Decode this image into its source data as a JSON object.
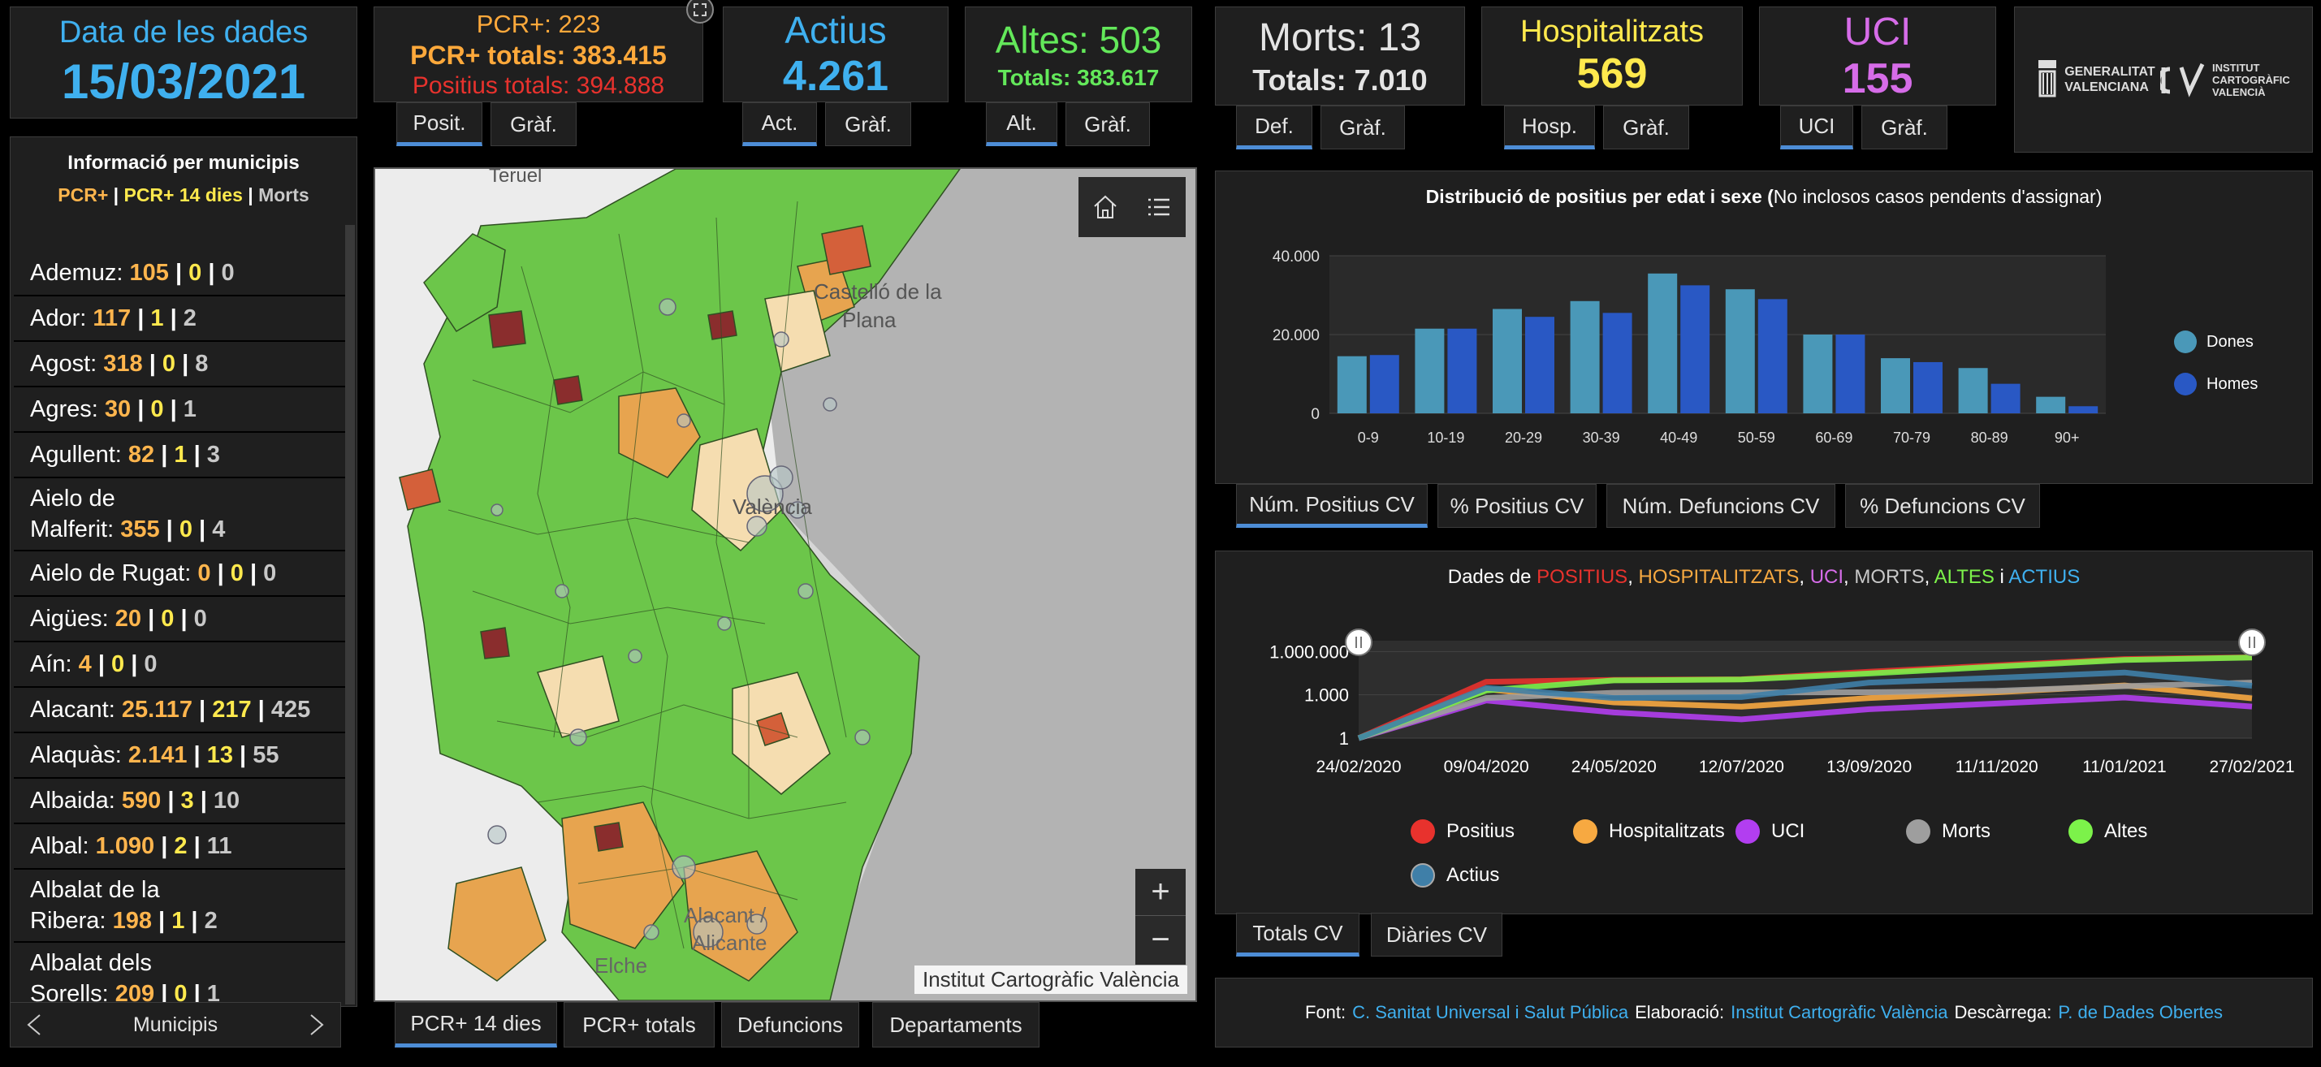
{
  "header": {
    "date_label": "Data de les dades",
    "date_value": "15/03/2021",
    "pcr_daily": "PCR+: 223",
    "pcr_totals": "PCR+ totals: 383.415",
    "positius_totals": "Positius totals: 394.888",
    "actius_label": "Actius",
    "actius_value": "4.261",
    "altes_label": "Altes: 503",
    "altes_totals": "Totals: 383.617",
    "morts_label": "Morts: 13",
    "morts_totals": "Totals: 7.010",
    "hosp_label": "Hospitalitzats",
    "hosp_value": "569",
    "uci_label": "UCI",
    "uci_value": "155",
    "logo_gva_1": "GENERALITAT",
    "logo_gva_2": "VALENCIANA",
    "logo_icv_1": "INSTITUT",
    "logo_icv_2": "CARTOGRÀFIC",
    "logo_icv_3": "VALENCIÀ"
  },
  "tabs": {
    "posit": "Posit.",
    "posit_graf": "Gràf.",
    "act": "Act.",
    "act_graf": "Gràf.",
    "alt": "Alt.",
    "alt_graf": "Gràf.",
    "def": "Def.",
    "def_graf": "Gràf.",
    "hosp": "Hosp.",
    "hosp_graf": "Gràf.",
    "uci": "UCI",
    "uci_graf": "Gràf."
  },
  "sidebar": {
    "title": "Informació per municipis",
    "legend_pcr": "PCR+",
    "legend_pcr14": "PCR+ 14 dies",
    "legend_sep": "|",
    "legend_morts": "Morts",
    "footer_label": "Municipis",
    "sep": " | ",
    "rows": [
      {
        "name": "Ademuz:",
        "pcr": "105",
        "pcr14": "0",
        "morts": "0"
      },
      {
        "name": "Ador:",
        "pcr": "117",
        "pcr14": "1",
        "morts": "2"
      },
      {
        "name": "Agost:",
        "pcr": "318",
        "pcr14": "0",
        "morts": "8"
      },
      {
        "name": "Agres:",
        "pcr": "30",
        "pcr14": "0",
        "morts": "1"
      },
      {
        "name": "Agullent:",
        "pcr": "82",
        "pcr14": "1",
        "morts": "3"
      },
      {
        "name": "Aielo de",
        "name2": "Malferit:",
        "pcr": "355",
        "pcr14": "0",
        "morts": "4"
      },
      {
        "name": "Aielo de Rugat:",
        "pcr": "0",
        "pcr14": "0",
        "morts": "0"
      },
      {
        "name": "Aigües:",
        "pcr": "20",
        "pcr14": "0",
        "morts": "0"
      },
      {
        "name": "Aín:",
        "pcr": "4",
        "pcr14": "0",
        "morts": "0"
      },
      {
        "name": "Alacant:",
        "pcr": "25.117",
        "pcr14": "217",
        "morts": "425"
      },
      {
        "name": "Alaquàs:",
        "pcr": "2.141",
        "pcr14": "13",
        "morts": "55"
      },
      {
        "name": "Albaida:",
        "pcr": "590",
        "pcr14": "3",
        "morts": "10"
      },
      {
        "name": "Albal:",
        "pcr": "1.090",
        "pcr14": "2",
        "morts": "11"
      },
      {
        "name": "Albalat de la",
        "name2": "Ribera:",
        "pcr": "198",
        "pcr14": "1",
        "morts": "2"
      },
      {
        "name": "Albalat dels",
        "name2": "Sorells:",
        "pcr": "209",
        "pcr14": "0",
        "morts": "1"
      }
    ]
  },
  "map": {
    "label_teruel": "Teruel",
    "label_castello_1": "Castelló de la",
    "label_castello_2": "Plana",
    "label_valencia": "València",
    "label_alacant": "Alacant /",
    "label_alicante": "Alicante",
    "label_elche": "Elche",
    "attribution": "Institut Cartogràfic València",
    "zoom_in": "+",
    "zoom_out": "−",
    "icons": [
      "home-icon",
      "list-icon"
    ]
  },
  "map_tabs": {
    "pcr14": "PCR+ 14 dies",
    "pcrtot": "PCR+ totals",
    "def": "Defuncions",
    "dep": "Departaments"
  },
  "age_chart": {
    "title_bold": "Distribució de positius per edat i sexe (",
    "title_rest": "No inclosos casos pendents d'assignar)",
    "legend_dones": "Dones",
    "legend_homes": "Homes",
    "colors": {
      "dones": "#4a98b8",
      "homes": "#2958c4"
    }
  },
  "age_tabs": {
    "num_pos": "Núm. Positius CV",
    "pct_pos": "% Positius CV",
    "num_def": "Núm. Defuncions CV",
    "pct_def": "% Defuncions CV"
  },
  "ts_chart": {
    "title_prefix": "Dades de ",
    "title_positius": "POSITIUS",
    "title_hosp": "HOSPITALITZATS",
    "title_uci": "UCI",
    "title_morts": "MORTS",
    "title_altes": "ALTES",
    "title_i": " i ",
    "title_actius": "ACTIUS",
    "comma": ", ",
    "legend": [
      {
        "name": "Positius",
        "color": "#e8322d"
      },
      {
        "name": "Hospitalitzats",
        "color": "#f7a941"
      },
      {
        "name": "UCI",
        "color": "#b23ef0"
      },
      {
        "name": "Morts",
        "color": "#9e9e9e"
      },
      {
        "name": "Altes",
        "color": "#7cf24a"
      },
      {
        "name": "Actius",
        "color": "#3f7fa8"
      }
    ]
  },
  "ts_tabs": {
    "totals": "Totals CV",
    "diaries": "Diàries CV"
  },
  "footer": {
    "font_label": "Font:",
    "font_link": "C. Sanitat Universal i Salut Pública",
    "elab_label": "Elaboració:",
    "elab_link": "Institut Cartogràfic València",
    "desc_label": "Descàrrega:",
    "desc_link": "P. de Dades Obertes"
  },
  "chart_data": [
    {
      "type": "bar",
      "title": "Distribució de positius per edat i sexe (No inclosos casos pendents d'assignar)",
      "categories": [
        "0-9",
        "10-19",
        "20-29",
        "30-39",
        "40-49",
        "50-59",
        "60-69",
        "70-79",
        "80-89",
        "90+"
      ],
      "ylim": [
        0,
        40000
      ],
      "yticks": [
        "0",
        "20.000",
        "40.000"
      ],
      "legend_position": "right",
      "series": [
        {
          "name": "Dones",
          "values": [
            14500,
            21500,
            26500,
            28500,
            35500,
            31500,
            20000,
            14000,
            11500,
            4200
          ]
        },
        {
          "name": "Homes",
          "values": [
            14800,
            21500,
            24500,
            25500,
            32500,
            29000,
            20000,
            13000,
            7500,
            1800
          ]
        }
      ]
    },
    {
      "type": "line",
      "title": "Dades de POSITIUS, HOSPITALITZATS, UCI, MORTS, ALTES i ACTIUS",
      "scale": "log",
      "yticks": [
        "1",
        "1.000",
        "1.000.000"
      ],
      "xticks": [
        "24/02/2020",
        "09/04/2020",
        "24/05/2020",
        "12/07/2020",
        "13/09/2020",
        "11/11/2020",
        "11/01/2021",
        "27/02/2021"
      ],
      "legend_position": "bottom",
      "series": [
        {
          "name": "Positius",
          "values": [
            1,
            8000,
            11000,
            12000,
            40000,
            110000,
            300000,
            394888
          ]
        },
        {
          "name": "Hospitalitzats",
          "values": [
            1,
            2500,
            300,
            150,
            600,
            1500,
            4500,
            569
          ]
        },
        {
          "name": "UCI",
          "values": [
            1,
            400,
            60,
            20,
            100,
            250,
            650,
            155
          ]
        },
        {
          "name": "Morts",
          "values": [
            1,
            600,
            1400,
            1450,
            1500,
            1900,
            4000,
            7010
          ]
        },
        {
          "name": "Altes",
          "values": [
            1,
            2000,
            10000,
            11500,
            30000,
            90000,
            260000,
            383617
          ]
        },
        {
          "name": "Actius",
          "values": [
            1,
            3000,
            600,
            700,
            7000,
            15000,
            35000,
            4261
          ]
        }
      ]
    }
  ]
}
